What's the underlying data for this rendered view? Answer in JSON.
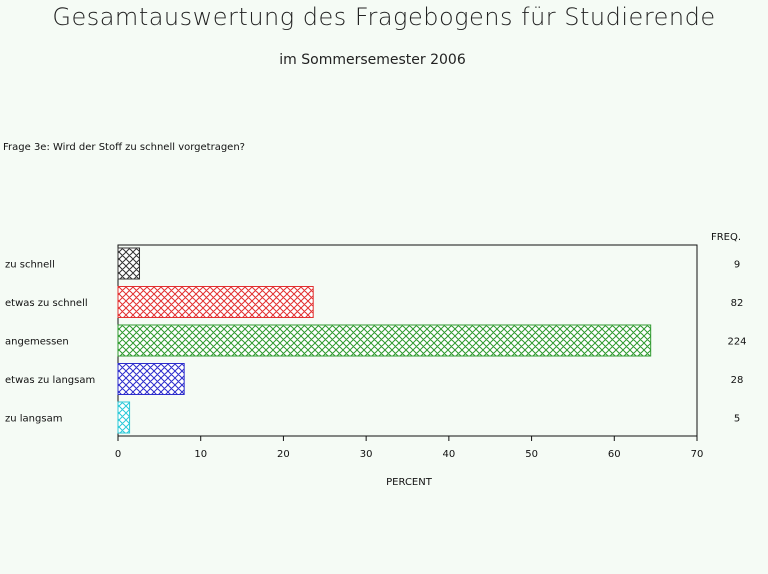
{
  "title": "Gesamtauswertung des Fragebogens für Studierende",
  "subtitle": "im Sommersemester 2006",
  "question": "Frage 3e: Wird der Stoff zu schnell vorgetragen?",
  "chart_data": {
    "type": "bar",
    "orientation": "horizontal",
    "categories": [
      "zu schnell",
      "etwas zu schnell",
      "angemessen",
      "etwas zu langsam",
      "zu langsam"
    ],
    "values": [
      2.6,
      23.6,
      64.4,
      8.0,
      1.4
    ],
    "freq": [
      9,
      82,
      224,
      28,
      5
    ],
    "freq_label": "FREQ.",
    "colors": [
      "#333333",
      "#e23030",
      "#2e9a2e",
      "#2d2dcc",
      "#2ac9d8"
    ],
    "xlabel": "PERCENT",
    "xlim": [
      0,
      70
    ],
    "xticks": [
      0,
      10,
      20,
      30,
      40,
      50,
      60,
      70
    ],
    "pattern": "crosshatch"
  }
}
